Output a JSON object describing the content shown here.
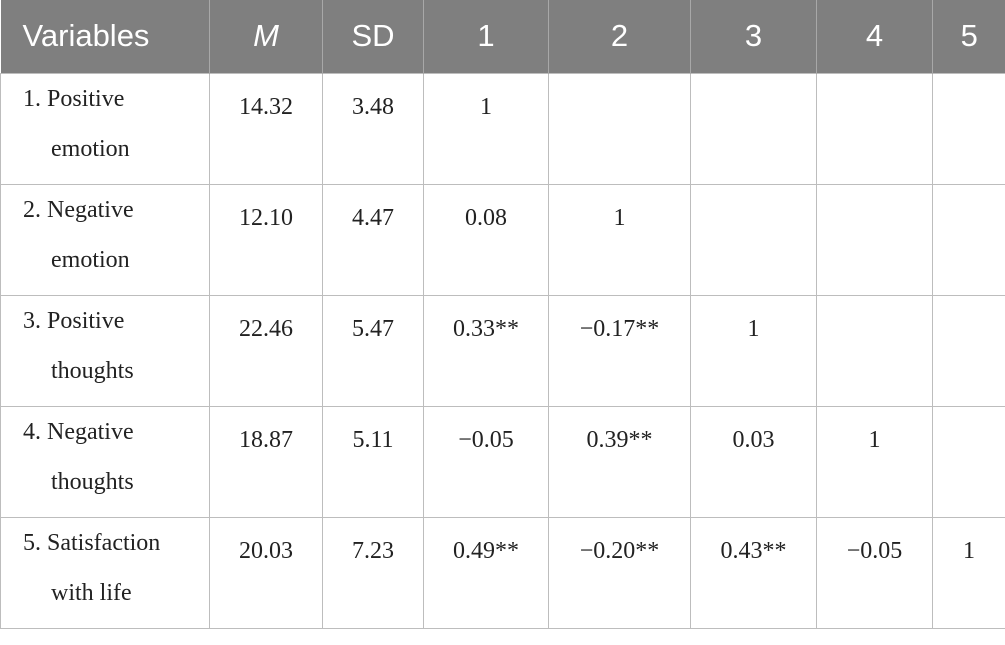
{
  "table": {
    "header": [
      "Variables",
      "M",
      "SD",
      "1",
      "2",
      "3",
      "4",
      "5"
    ],
    "rows": [
      [
        "1. Positive emotion",
        "14.32",
        "3.48",
        "1"
      ],
      [
        "2. Negative emotion",
        "12.10",
        "4.47",
        "0.08",
        "1"
      ],
      [
        "3. Positive thoughts",
        "22.46",
        "5.47",
        "0.33**",
        "−0.17**",
        "1"
      ],
      [
        "4. Negative thoughts",
        "18.87",
        "5.11",
        "−0.05",
        "0.39**",
        "0.03",
        "1"
      ],
      [
        "5. Satisfaction with life",
        "20.03",
        "7.23",
        "0.49**",
        "−0.20**",
        "0.43**",
        "−0.05",
        "1"
      ]
    ]
  }
}
